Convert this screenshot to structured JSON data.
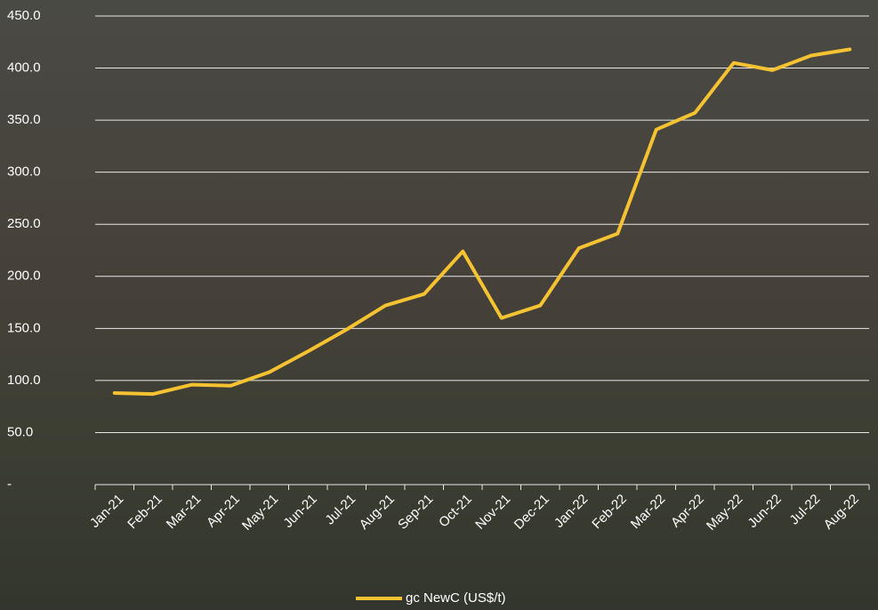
{
  "chart_data": {
    "type": "line",
    "categories": [
      "Jan-21",
      "Feb-21",
      "Mar-21",
      "Apr-21",
      "May-21",
      "Jun-21",
      "Jul-21",
      "Aug-21",
      "Sep-21",
      "Oct-21",
      "Nov-21",
      "Dec-21",
      "Jan-22",
      "Feb-22",
      "Mar-22",
      "Apr-22",
      "May-22",
      "Jun-22",
      "Jul-22",
      "Aug-22"
    ],
    "series": [
      {
        "name": "gc NewC (US$/t)",
        "color": "#f5c232",
        "values": [
          88,
          87,
          96,
          95,
          108,
          128,
          149,
          172,
          183,
          224,
          160,
          172,
          227,
          241,
          341,
          357,
          405,
          398,
          412,
          418
        ]
      }
    ],
    "ylim": [
      0,
      450
    ],
    "yticks": [
      {
        "value": 0,
        "label": "-"
      },
      {
        "value": 50,
        "label": "50.0"
      },
      {
        "value": 100,
        "label": "100.0"
      },
      {
        "value": 150,
        "label": "150.0"
      },
      {
        "value": 200,
        "label": "200.0"
      },
      {
        "value": 250,
        "label": "250.0"
      },
      {
        "value": 300,
        "label": "300.0"
      },
      {
        "value": 350,
        "label": "350.0"
      },
      {
        "value": 400,
        "label": "400.0"
      },
      {
        "value": 450,
        "label": "450.0"
      }
    ],
    "grid": true,
    "legend": "bottom"
  }
}
